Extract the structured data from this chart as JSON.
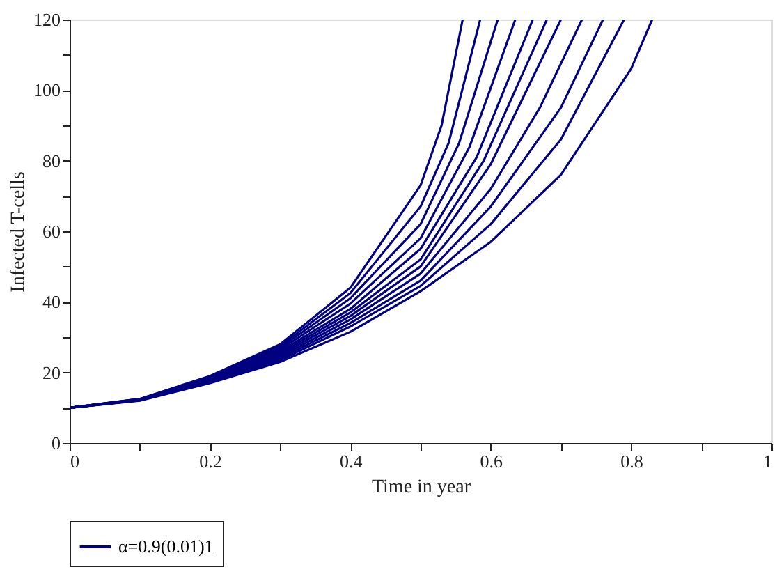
{
  "chart_data": {
    "type": "line",
    "xlabel": "Time in year",
    "ylabel": "Infected T-cells",
    "xlim": [
      0,
      1
    ],
    "ylim": [
      0,
      120
    ],
    "xticks": [
      0,
      {
        "value": 0.1,
        "label": null
      },
      0.2,
      {
        "value": 0.3,
        "label": null
      },
      0.4,
      {
        "value": 0.5,
        "label": null
      },
      0.6,
      {
        "value": 0.7,
        "label": null
      },
      0.8,
      {
        "value": 0.9,
        "label": null
      },
      1
    ],
    "yticks": [
      0,
      {
        "value": 10,
        "label": null
      },
      20,
      {
        "value": 30,
        "label": null
      },
      40,
      {
        "value": 50,
        "label": null
      },
      60,
      {
        "value": 70,
        "label": null
      },
      80,
      {
        "value": 90,
        "label": null
      },
      100,
      {
        "value": 110,
        "label": null
      },
      120
    ],
    "grid": false,
    "legend": "bottom",
    "marker": "none",
    "line_style": "solid",
    "series": [
      {
        "name": "α=0.9(0.01)1",
        "color": "#000080",
        "x": [
          0,
          0.1,
          0.2,
          0.3,
          0.4,
          0.5,
          0.6,
          0.7,
          0.8,
          0.83
        ],
        "values": [
          10,
          12,
          17,
          23,
          31.5,
          43,
          57,
          76,
          106,
          120
        ]
      },
      {
        "color": "#000080",
        "x": [
          0,
          0.1,
          0.2,
          0.3,
          0.4,
          0.5,
          0.6,
          0.7,
          0.79
        ],
        "values": [
          10,
          12.1,
          17.2,
          23.5,
          33,
          44.5,
          62,
          86,
          120
        ]
      },
      {
        "color": "#000080",
        "x": [
          0,
          0.1,
          0.2,
          0.3,
          0.4,
          0.5,
          0.6,
          0.7,
          0.76
        ],
        "values": [
          10,
          12.1,
          17.4,
          24,
          34,
          46,
          67,
          95,
          120
        ]
      },
      {
        "color": "#000080",
        "x": [
          0,
          0.1,
          0.2,
          0.3,
          0.4,
          0.5,
          0.6,
          0.67,
          0.73
        ],
        "values": [
          10,
          12.2,
          17.6,
          24.5,
          35,
          48,
          72,
          95,
          120
        ]
      },
      {
        "color": "#000080",
        "x": [
          0,
          0.1,
          0.2,
          0.3,
          0.4,
          0.5,
          0.6,
          0.7
        ],
        "values": [
          10,
          12.2,
          17.8,
          25,
          36,
          50,
          79,
          120
        ]
      },
      {
        "color": "#000080",
        "x": [
          0,
          0.1,
          0.2,
          0.3,
          0.4,
          0.5,
          0.59,
          0.68
        ],
        "values": [
          10,
          12.3,
          18,
          25.5,
          37,
          52,
          80,
          120
        ]
      },
      {
        "color": "#000080",
        "x": [
          0,
          0.1,
          0.2,
          0.3,
          0.4,
          0.5,
          0.58,
          0.66
        ],
        "values": [
          10,
          12.3,
          18.2,
          26,
          38,
          55,
          81,
          120
        ]
      },
      {
        "color": "#000080",
        "x": [
          0,
          0.1,
          0.2,
          0.3,
          0.4,
          0.5,
          0.57,
          0.635
        ],
        "values": [
          10,
          12.4,
          18.4,
          26.5,
          39.5,
          58,
          84,
          120
        ]
      },
      {
        "color": "#000080",
        "x": [
          0,
          0.1,
          0.2,
          0.3,
          0.4,
          0.5,
          0.555,
          0.61
        ],
        "values": [
          10,
          12.4,
          18.6,
          27,
          41,
          62,
          85,
          120
        ]
      },
      {
        "color": "#000080",
        "x": [
          0,
          0.1,
          0.2,
          0.3,
          0.4,
          0.5,
          0.54,
          0.585
        ],
        "values": [
          10,
          12.5,
          18.8,
          27.5,
          42.5,
          67,
          85,
          120
        ]
      },
      {
        "color": "#000080",
        "x": [
          0,
          0.1,
          0.2,
          0.3,
          0.4,
          0.5,
          0.53,
          0.56
        ],
        "values": [
          10,
          12.5,
          19,
          28,
          44,
          73,
          90,
          120
        ]
      }
    ]
  }
}
